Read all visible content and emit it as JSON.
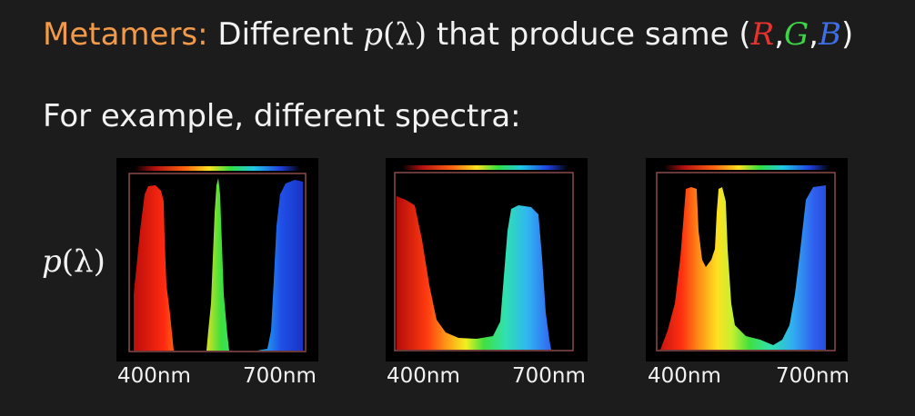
{
  "slide": {
    "title": {
      "term": "Metamers:",
      "text_before": "Different",
      "p_symbol": "p",
      "p_arg": "(λ)",
      "text_after": "that produce same",
      "tuple_open": "(",
      "r": "R",
      "sep1": ",",
      "g": "G",
      "sep2": ",",
      "b": "B",
      "tuple_close": ")"
    },
    "subtitle": "For example, different spectra:",
    "y_label": {
      "symbol": "p",
      "arg": "(λ)"
    },
    "panels": [
      {
        "tick_left": "400nm",
        "tick_right": "700nm"
      },
      {
        "tick_left": "400nm",
        "tick_right": "700nm"
      },
      {
        "tick_left": "400nm",
        "tick_right": "700nm"
      }
    ]
  },
  "colors": {
    "background": "#1c1c1c",
    "accent": "#f29a4a",
    "r": "#e8322e",
    "g": "#3fd448",
    "b": "#3f6fe8",
    "frame": "#8a4a4a"
  }
}
